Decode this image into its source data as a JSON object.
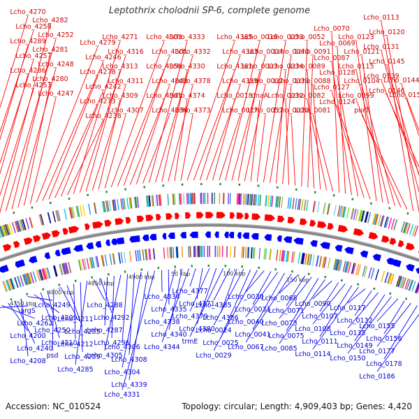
{
  "title": "Leptothrix cholodnii SP-6, complete genome",
  "footer": {
    "accession": "Accession: NC_010524",
    "topology": "Topology: circular; Length: 4,909,403 bp; Genes: 4,420"
  },
  "colors": {
    "forward": "#ff0000",
    "reverse": "#0000ff",
    "backbone": "#888888",
    "tick_marks": "#228b22",
    "label_text_fwd": "#cc0000",
    "label_text_rev": "#0000cc"
  },
  "scale_ticks": [
    "4750 kbp",
    "4800 kbp",
    "4850 kbp",
    "4900 kbp",
    "50 kbp",
    "100 kbp",
    "150 kbp"
  ],
  "top_labels": [
    "Lcho_4270",
    "Lcho_4258",
    "Lcho_4289",
    "Lcho_4257",
    "Lcho_4286",
    "Lcho_4253",
    "Lcho_4282",
    "Lcho_4252",
    "Lcho_4281",
    "Lcho_4248",
    "Lcho_4280",
    "Lcho_4247",
    "Lcho_4279",
    "Lcho_4246",
    "Lcho_4278",
    "Lcho_4242",
    "Lcho_4273",
    "Lcho_4238",
    "Lcho_4271",
    "Lcho_4316",
    "Lcho_4313",
    "Lcho_4311",
    "Lcho_4309",
    "Lcho_4307",
    "Lcho_4303",
    "Lcho_4301",
    "Lcho_4350",
    "Lcho_4343",
    "Lcho_4341",
    "Lcho_4336",
    "Lcho_4333",
    "Lcho_4332",
    "Lcho_4330",
    "Lcho_4378",
    "Lcho_4374",
    "Lcho_4373",
    "Lcho_4365",
    "Lcho_4363",
    "Lcho_4361",
    "Lcho_4359",
    "Lcho_0018",
    "Lcho_0017",
    "Lcho_0016",
    "Lcho_0004",
    "Lcho_0003",
    "Lcho_0002",
    "dnaA",
    "Lcho_0057",
    "Lcho_0053",
    "Lcho_0043",
    "Lcho_0034",
    "Lcho_0033",
    "Lcho_0032",
    "Lcho_0020",
    "Lcho_0052",
    "Lcho_0091",
    "Lcho_0089",
    "Lcho_0088",
    "Lcho_0082",
    "Lcho_0081",
    "Lcho_0070",
    "Lcho_0069",
    "Lcho_0087",
    "Lcho_0128",
    "Lcho_0127",
    "Lcho_0124",
    "Lcho_0123",
    "Lcho_0121",
    "Lcho_0115",
    "Lcho_0104",
    "Lcho_0099",
    "purT",
    "Lcho_0113",
    "Lcho_0120",
    "Lcho_0131",
    "Lcho_0145",
    "Lcho_0139",
    "Lcho_0146",
    "Lcho_0144",
    "Lcho_0151"
  ],
  "bottom_labels": [
    "argS",
    "Lcho_4262",
    "Lcho_4200",
    "Lcho_4240",
    "Lcho_4208",
    "Lcho_4249",
    "Lcho_4209",
    "Lcho_4250",
    "Lcho_4210",
    "psd",
    "Lcho_4211",
    "Lcho_4255",
    "Lcho_4212",
    "Lcho_4259",
    "Lcho_4285",
    "Lcho_4288",
    "Lcho_4292",
    "Lcho_4287",
    "Lcho_4296",
    "Lcho_4305",
    "Lcho_4306",
    "Lcho_4308",
    "Lcho_4304",
    "Lcho_4339",
    "Lcho_4331",
    "Lcho_4334",
    "Lcho_4335",
    "Lcho_4338",
    "Lcho_4340",
    "Lcho_4344",
    "Lcho_4377",
    "Lcho_4371",
    "Lcho_4379",
    "Lcho_4380",
    "trmE",
    "Lcho_4385",
    "Lcho_4386",
    "Lcho_0024",
    "Lcho_0025",
    "Lcho_0029",
    "Lcho_0030",
    "Lcho_0031",
    "Lcho_0040",
    "Lcho_0041",
    "Lcho_0067",
    "Lcho_0068",
    "Lcho_0071",
    "Lcho_0073",
    "Lcho_0075",
    "Lcho_0085",
    "Lcho_0090",
    "Lcho_0107",
    "Lcho_0108",
    "Lcho_0111",
    "Lcho_0114",
    "Lcho_0117",
    "Lcho_0132",
    "Lcho_0135",
    "Lcho_0149",
    "Lcho_0150",
    "Lcho_0155",
    "Lcho_0156",
    "Lcho_0177",
    "Lcho_0178",
    "Lcho_0186"
  ]
}
